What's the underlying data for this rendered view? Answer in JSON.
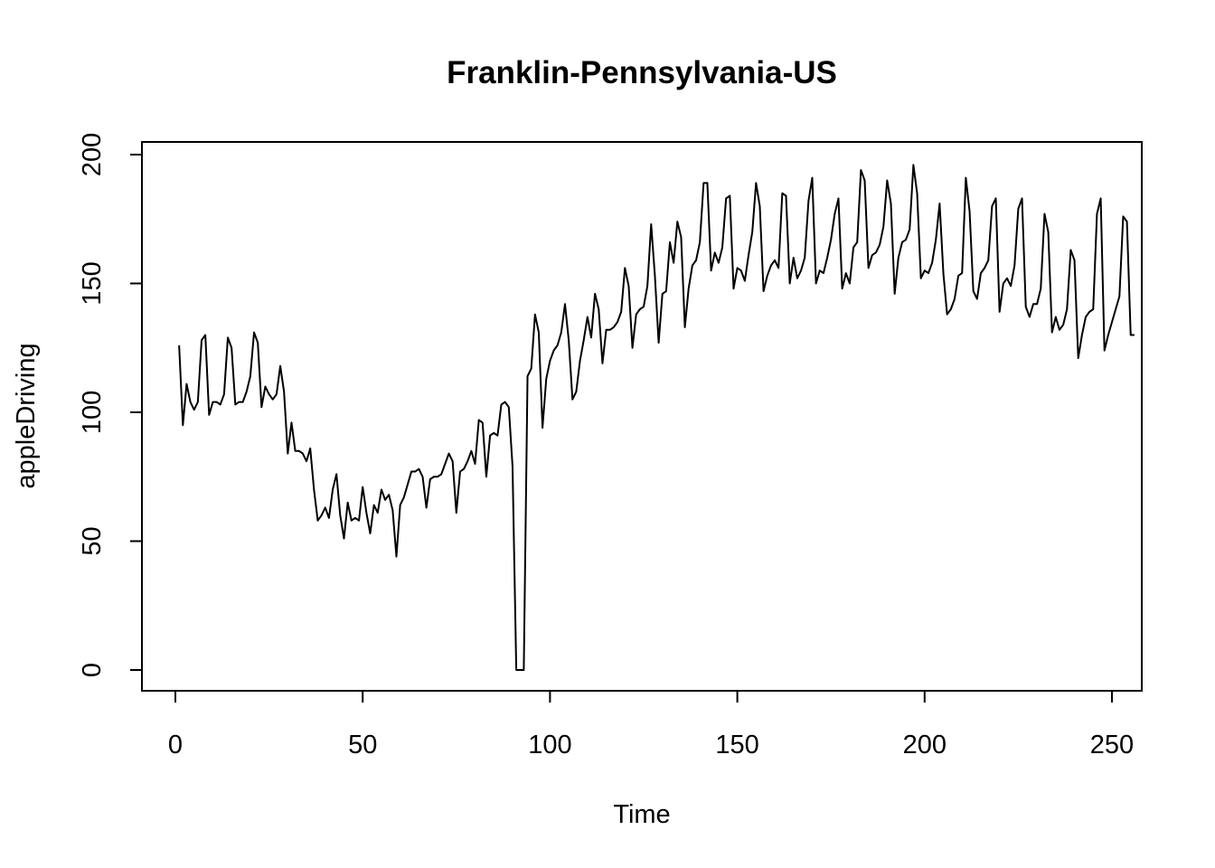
{
  "chart_data": {
    "type": "line",
    "title": "Franklin-Pennsylvania-US",
    "xlabel": "Time",
    "ylabel": "appleDriving",
    "xlim": [
      0,
      250
    ],
    "ylim": [
      0,
      200
    ],
    "xticks": [
      0,
      50,
      100,
      150,
      200,
      250
    ],
    "xtick_labels": [
      "0",
      "50",
      "100",
      "150",
      "200",
      "250"
    ],
    "yticks": [
      0,
      50,
      100,
      150,
      200
    ],
    "ytick_labels": [
      "0",
      "50",
      "100",
      "150",
      "200"
    ],
    "grid": false,
    "series": [
      {
        "name": "appleDriving",
        "x_start": 1,
        "x_step": 1,
        "values": [
          126,
          95,
          111,
          104,
          101,
          104,
          128,
          130,
          99,
          104,
          104,
          103,
          107,
          129,
          125,
          103,
          104,
          104,
          108,
          114,
          131,
          127,
          102,
          110,
          107,
          105,
          107,
          118,
          108,
          84,
          96,
          85,
          85,
          84,
          81,
          86,
          70,
          58,
          60,
          63,
          59,
          70,
          76,
          60,
          51,
          65,
          58,
          59,
          58,
          71,
          61,
          53,
          64,
          61,
          70,
          66,
          68,
          62,
          44,
          64,
          67,
          72,
          77,
          77,
          78,
          75,
          63,
          74,
          75,
          75,
          76,
          80,
          84,
          81,
          61,
          77,
          78,
          81,
          85,
          80,
          97,
          96,
          75,
          91,
          92,
          91,
          103,
          104,
          102,
          79,
          0,
          0,
          0,
          114,
          117,
          138,
          131,
          94,
          113,
          120,
          124,
          126,
          131,
          142,
          128,
          105,
          108,
          120,
          128,
          137,
          129,
          146,
          140,
          119,
          132,
          132,
          133,
          135,
          139,
          156,
          149,
          125,
          138,
          140,
          141,
          149,
          173,
          153,
          127,
          146,
          147,
          166,
          158,
          174,
          168,
          133,
          148,
          157,
          159,
          166,
          189,
          189,
          155,
          162,
          158,
          164,
          183,
          184,
          148,
          156,
          155,
          151,
          161,
          170,
          189,
          180,
          147,
          153,
          157,
          159,
          156,
          185,
          184,
          150,
          160,
          152,
          155,
          160,
          182,
          191,
          150,
          155,
          154,
          160,
          167,
          177,
          183,
          148,
          154,
          150,
          164,
          166,
          194,
          190,
          156,
          161,
          162,
          165,
          172,
          190,
          181,
          146,
          160,
          166,
          167,
          171,
          196,
          185,
          152,
          155,
          154,
          158,
          167,
          181,
          154,
          138,
          140,
          144,
          153,
          154,
          191,
          178,
          147,
          144,
          154,
          156,
          159,
          180,
          183,
          139,
          150,
          152,
          149,
          157,
          179,
          183,
          141,
          137,
          142,
          142,
          148,
          177,
          170,
          131,
          137,
          132,
          134,
          140,
          163,
          159,
          121,
          130,
          137,
          139,
          140,
          177,
          183,
          124,
          130,
          135,
          140,
          145,
          176,
          174,
          130,
          130
        ]
      }
    ]
  }
}
